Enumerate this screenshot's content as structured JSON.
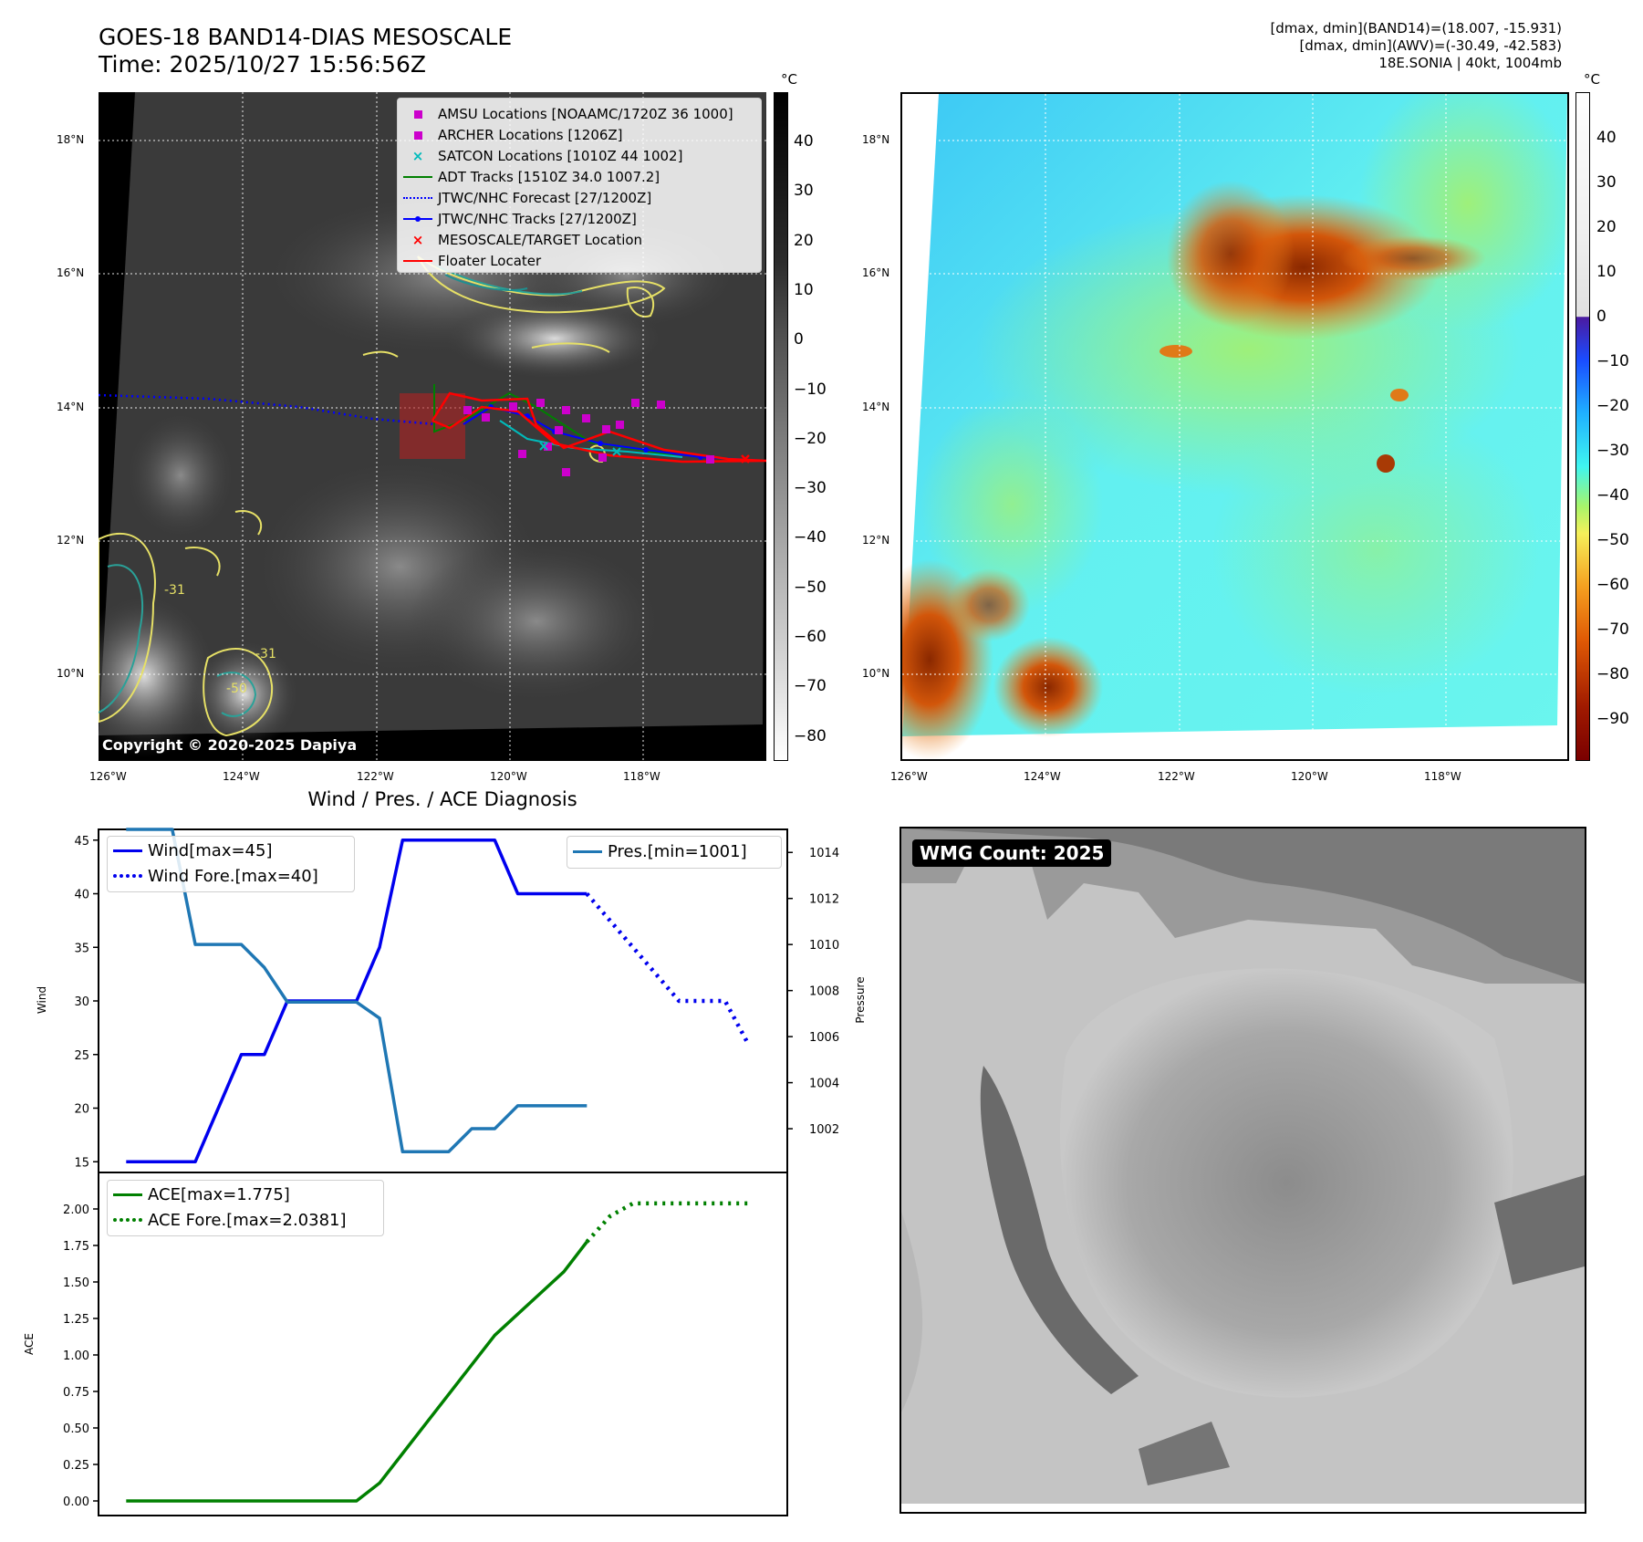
{
  "header": {
    "title_line1": "GOES-18 BAND14-DIAS MESOSCALE",
    "title_line2": "Time: 2025/10/27 15:56:56Z",
    "info_line1": "[dmax, dmin](BAND14)=(18.007, -15.931)",
    "info_line2": "[dmax, dmin](AWV)=(-30.49, -42.583)",
    "info_line3": "18E.SONIA | 40kt, 1004mb"
  },
  "map_axes": {
    "lat_labels": [
      "18°N",
      "16°N",
      "14°N",
      "12°N",
      "10°N"
    ],
    "lon_labels": [
      "126°W",
      "124°W",
      "122°W",
      "120°W",
      "118°W"
    ]
  },
  "left_map": {
    "copyright": "Copyright © 2020-2025 Dapiya",
    "contour_labels": [
      "-31",
      "-31",
      "-50"
    ],
    "colorbar": {
      "unit": "°C",
      "ticks": [
        "40",
        "30",
        "20",
        "10",
        "0",
        "−10",
        "−20",
        "−30",
        "−40",
        "−50",
        "−60",
        "−70",
        "−80"
      ]
    },
    "legend": [
      {
        "label": "AMSU Locations [NOAAMC/1720Z 36 1000]",
        "marker": "square",
        "color": "#cc00cc"
      },
      {
        "label": "ARCHER Locations [1206Z]",
        "marker": "square",
        "color": "#cc00cc"
      },
      {
        "label": "SATCON Locations [1010Z 44 1002]",
        "marker": "x",
        "color": "#00bbbb"
      },
      {
        "label": "ADT Tracks [1510Z 34.0 1007.2]",
        "marker": "line",
        "color": "#008000"
      },
      {
        "label": "JTWC/NHC Forecast [27/1200Z]",
        "marker": "dotted",
        "color": "#0000ff"
      },
      {
        "label": "JTWC/NHC Tracks [27/1200Z]",
        "marker": "line-dot",
        "color": "#0000ff"
      },
      {
        "label": "MESOSCALE/TARGET Location",
        "marker": "x",
        "color": "#ff0000"
      },
      {
        "label": "Floater Locater",
        "marker": "line",
        "color": "#ff0000"
      }
    ]
  },
  "right_map": {
    "colorbar": {
      "unit": "°C",
      "ticks": [
        "40",
        "30",
        "20",
        "10",
        "0",
        "−10",
        "−20",
        "−30",
        "−40",
        "−50",
        "−60",
        "−70",
        "−80",
        "−90"
      ]
    }
  },
  "wmg": {
    "badge": "WMG Count: 2025"
  },
  "chart_data": [
    {
      "type": "line",
      "title": "Wind / Pres. / ACE Diagnosis",
      "ylabel": "Wind",
      "y2label": "Pressure",
      "ylim": [
        14,
        46
      ],
      "y2lim": [
        1000.1,
        1015.0
      ],
      "yticks": [
        15,
        20,
        25,
        30,
        35,
        40,
        45
      ],
      "y2ticks": [
        1002,
        1004,
        1006,
        1008,
        1010,
        1012,
        1014
      ],
      "x": [
        0,
        1,
        2,
        3,
        4,
        5,
        6,
        7,
        8,
        9,
        10,
        11,
        12,
        13,
        14,
        15,
        16,
        17,
        18,
        19,
        20,
        21,
        22,
        23,
        24,
        25,
        26,
        27
      ],
      "xlim": [
        -1.2,
        28.7
      ],
      "series": [
        {
          "name": "Wind[max=45]",
          "color": "#0000ee",
          "style": "solid",
          "axis": "left",
          "x": [
            0,
            1,
            2,
            3,
            4,
            5,
            6,
            7,
            8,
            9,
            10,
            11,
            12,
            13,
            14,
            15,
            16,
            17,
            18,
            19,
            20
          ],
          "values": [
            15,
            15,
            15,
            15,
            20,
            25,
            25,
            30,
            30,
            30,
            30,
            35,
            45,
            45,
            45,
            45,
            45,
            40,
            40,
            40,
            40
          ]
        },
        {
          "name": "Wind Fore.[max=40]",
          "color": "#0000ee",
          "style": "dotted",
          "axis": "left",
          "x": [
            20,
            21,
            22,
            23,
            24,
            25,
            26,
            27
          ],
          "values": [
            40,
            37.5,
            35,
            32.5,
            30,
            30,
            30,
            26
          ]
        },
        {
          "name": "Pres.[min=1001]",
          "color": "#1f77b4",
          "style": "solid",
          "axis": "right",
          "x": [
            0,
            1,
            2,
            3,
            4,
            5,
            6,
            7,
            8,
            9,
            10,
            11,
            12,
            13,
            14,
            15,
            16,
            17,
            18,
            19,
            20
          ],
          "values": [
            1015,
            1015,
            1015,
            1010,
            1010,
            1010,
            1009,
            1007.5,
            1007.5,
            1007.5,
            1007.5,
            1006.8,
            1001,
            1001,
            1001,
            1002,
            1002,
            1003,
            1003,
            1003,
            1003
          ]
        }
      ]
    },
    {
      "type": "line",
      "ylabel": "ACE",
      "ylim": [
        -0.1,
        2.25
      ],
      "yticks": [
        "0.00",
        "0.25",
        "0.50",
        "0.75",
        "1.00",
        "1.25",
        "1.50",
        "1.75",
        "2.00"
      ],
      "x": [
        0,
        1,
        2,
        3,
        4,
        5,
        6,
        7,
        8,
        9,
        10,
        11,
        12,
        13,
        14,
        15,
        16,
        17,
        18,
        19,
        20,
        21,
        22,
        23,
        24,
        25,
        26,
        27
      ],
      "xlim": [
        -1.2,
        28.7
      ],
      "series": [
        {
          "name": "ACE[max=1.775]",
          "color": "#008000",
          "style": "solid",
          "x": [
            0,
            1,
            2,
            3,
            4,
            5,
            6,
            7,
            8,
            9,
            10,
            11,
            12,
            13,
            14,
            15,
            16,
            17,
            18,
            19,
            20
          ],
          "values": [
            0,
            0,
            0,
            0,
            0,
            0,
            0,
            0,
            0,
            0,
            0,
            0.1225,
            0.325,
            0.5275,
            0.73,
            0.9325,
            1.135,
            1.28,
            1.425,
            1.57,
            1.775
          ]
        },
        {
          "name": "ACE Fore.[max=2.0381]",
          "color": "#008000",
          "style": "dotted",
          "x": [
            20,
            21,
            22,
            23,
            24,
            25,
            26,
            27
          ],
          "values": [
            1.775,
            1.95,
            2.0381,
            2.0381,
            2.0381,
            2.0381,
            2.0381,
            2.0381
          ]
        }
      ]
    }
  ]
}
